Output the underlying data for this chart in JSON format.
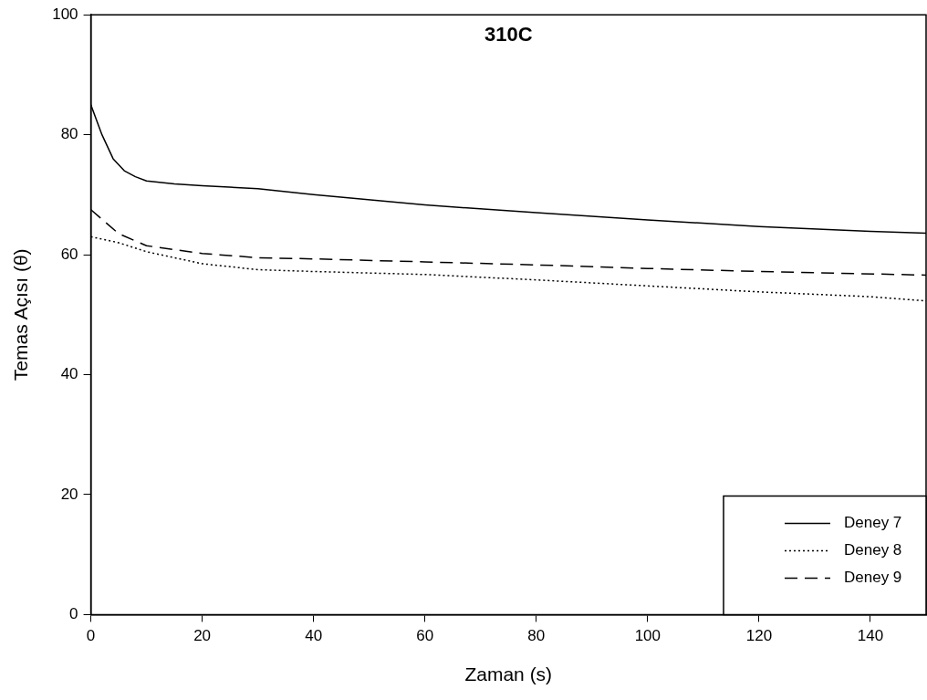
{
  "chart_data": {
    "type": "line",
    "title": "310C",
    "xlabel": "Zaman (s)",
    "ylabel": "Temas Açısı (θ)",
    "xlim": [
      0,
      150
    ],
    "xticks": [
      0,
      20,
      40,
      60,
      80,
      100,
      120,
      140
    ],
    "ylim": [
      0,
      100
    ],
    "yticks": [
      0,
      20,
      40,
      60,
      80,
      100
    ],
    "grid": false,
    "legend": "bottom right",
    "marker": "none",
    "series": [
      {
        "name": "Deney 7",
        "color": "#000000",
        "line_style": "solid",
        "x": [
          0,
          2,
          4,
          6,
          8,
          10,
          15,
          20,
          30,
          40,
          60,
          80,
          100,
          120,
          140,
          150
        ],
        "values": [
          85,
          80,
          76,
          74,
          73,
          72.3,
          71.8,
          71.5,
          71,
          70,
          68.3,
          67,
          65.8,
          64.7,
          63.9,
          63.6
        ]
      },
      {
        "name": "Deney 8",
        "color": "#000000",
        "line_style": "dotted",
        "x": [
          0,
          5,
          10,
          20,
          30,
          40,
          60,
          80,
          100,
          120,
          140,
          150
        ],
        "values": [
          63,
          62,
          60.5,
          58.5,
          57.5,
          57.2,
          56.7,
          55.8,
          54.8,
          53.8,
          53,
          52.3
        ]
      },
      {
        "name": "Deney 9",
        "color": "#000000",
        "line_style": "dashed",
        "x": [
          0,
          5,
          10,
          20,
          30,
          40,
          60,
          80,
          100,
          120,
          150
        ],
        "values": [
          67.5,
          63.5,
          61.5,
          60.2,
          59.5,
          59.3,
          58.8,
          58.3,
          57.7,
          57.2,
          56.6
        ]
      }
    ]
  }
}
